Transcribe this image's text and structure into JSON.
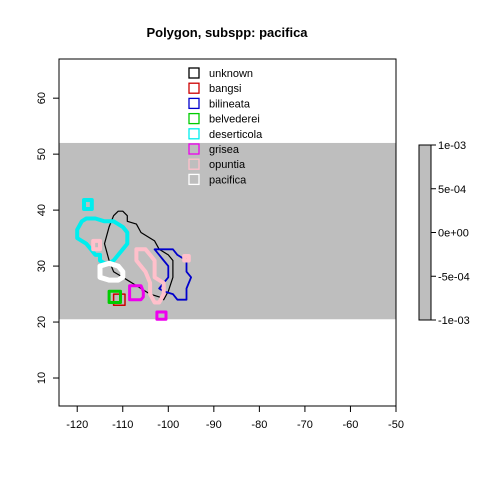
{
  "chart_data": {
    "type": "map",
    "title": "Polygon, subspp: pacifica",
    "xlim": [
      -124,
      -50
    ],
    "ylim": [
      5,
      67
    ],
    "x_ticks": [
      -120,
      -110,
      -100,
      -90,
      -80,
      -70,
      -60,
      -50
    ],
    "y_ticks": [
      10,
      20,
      30,
      40,
      50,
      60
    ],
    "x_tick_labels": [
      "-120",
      "-110",
      "-100",
      "-90",
      "-80",
      "-70",
      "-60",
      "-50"
    ],
    "y_tick_labels": [
      "10",
      "20",
      "30",
      "40",
      "50",
      "60"
    ],
    "band": {
      "y_range": [
        20.5,
        52
      ],
      "color": "#bebebe",
      "value": 0
    },
    "legend": {
      "position": "top-center",
      "entries": [
        {
          "name": "unknown",
          "color": "#000000"
        },
        {
          "name": "bangsi",
          "color": "#cc0000"
        },
        {
          "name": "bilineata",
          "color": "#0000cc"
        },
        {
          "name": "belvederei",
          "color": "#00cc00"
        },
        {
          "name": "deserticola",
          "color": "#00eeee"
        },
        {
          "name": "grisea",
          "color": "#ee00ee"
        },
        {
          "name": "opuntia",
          "color": "#ffc0cb"
        },
        {
          "name": "pacifica",
          "color": "#ffffff"
        }
      ]
    },
    "colorbar": {
      "ticks": [
        0.001,
        0.0005,
        0,
        -0.0005,
        -0.001
      ],
      "labels": [
        "1e-03",
        "5e-04",
        "0e+00",
        "-5e-04",
        "-1e-03"
      ],
      "color": "#bebebe"
    },
    "series": [
      {
        "name": "unknown",
        "color": "#000000",
        "width": 1.2,
        "x": [
          -112,
          -111,
          -110,
          -109,
          -109,
          -107,
          -106,
          -104,
          -103,
          -102,
          -100,
          -99,
          -99,
          -100,
          -101,
          -102,
          -104,
          -106,
          -108,
          -110,
          -112,
          -113,
          -114,
          -113,
          -112
        ],
        "y": [
          39,
          39.8,
          39.8,
          39,
          38,
          37.5,
          36,
          35,
          34.5,
          33,
          32,
          31,
          28,
          25.5,
          24,
          24.5,
          25,
          26,
          27,
          28,
          29,
          31,
          34,
          37,
          39
        ]
      },
      {
        "name": "bangsi",
        "color": "#cc0000",
        "width": 1.5,
        "x": [
          -112,
          -109.5,
          -109.5,
          -112,
          -112
        ],
        "y": [
          25,
          25,
          23,
          23,
          25
        ]
      },
      {
        "name": "bilineata",
        "color": "#0000cc",
        "width": 1.8,
        "x": [
          -103,
          -101,
          -99,
          -98,
          -96,
          -96,
          -95,
          -96,
          -96,
          -98,
          -99,
          -101,
          -102,
          -101,
          -100,
          -100,
          -101,
          -102,
          -103
        ],
        "y": [
          33,
          33,
          33,
          32,
          31,
          29,
          28,
          26,
          24,
          24,
          25,
          25.5,
          26,
          27,
          28,
          30,
          31,
          32,
          33
        ]
      },
      {
        "name": "belvederei",
        "color": "#00cc00",
        "width": 3,
        "x": [
          -113,
          -110.5,
          -110.5,
          -113,
          -113
        ],
        "y": [
          25.5,
          25.5,
          23.5,
          23.5,
          25.5
        ]
      },
      {
        "name": "deserticola",
        "color": "#00eeee",
        "width": 4,
        "x": [
          -119,
          -118,
          -116,
          -114,
          -112,
          -110,
          -109,
          -109,
          -110,
          -111,
          -112,
          -113,
          -114,
          -115,
          -115,
          -116,
          -117,
          -118,
          -119,
          -120,
          -120,
          -119
        ],
        "y": [
          38,
          38.5,
          38.5,
          38,
          38,
          37,
          36,
          34,
          33,
          32,
          31,
          30.5,
          30.5,
          31,
          32,
          32,
          33,
          34,
          34.5,
          35,
          36.5,
          38
        ]
      },
      {
        "name": "deserticola_b",
        "color": "#00eeee",
        "width": 4,
        "x": [
          -118.5,
          -116.8,
          -116.8,
          -118.5,
          -118.5
        ],
        "y": [
          41.8,
          41.8,
          40.2,
          40.2,
          41.8
        ]
      },
      {
        "name": "grisea",
        "color": "#ee00ee",
        "width": 3,
        "x": [
          -108.5,
          -106,
          -105.5,
          -105.5,
          -106,
          -108.5,
          -108.5
        ],
        "y": [
          26.5,
          26.5,
          25.5,
          24.5,
          24,
          24,
          26.5
        ]
      },
      {
        "name": "grisea_b",
        "color": "#ee00ee",
        "width": 3,
        "x": [
          -102.5,
          -100.5,
          -100.5,
          -102.5,
          -102.5
        ],
        "y": [
          21.8,
          21.8,
          20.5,
          20.5,
          21.8
        ]
      },
      {
        "name": "opuntia",
        "color": "#ffc0cb",
        "width": 4,
        "x": [
          -107,
          -105,
          -104,
          -103,
          -103,
          -101,
          -101,
          -102,
          -103,
          -104,
          -104,
          -105,
          -107,
          -107
        ],
        "y": [
          33,
          33,
          32,
          31,
          28,
          27,
          25,
          23.5,
          23.5,
          25,
          27,
          29,
          31,
          33
        ]
      },
      {
        "name": "opuntia_b",
        "color": "#ffc0cb",
        "width": 4,
        "x": [
          -116.5,
          -115,
          -115,
          -116.5,
          -116.5
        ],
        "y": [
          34.5,
          34.5,
          33,
          33,
          34.5
        ]
      },
      {
        "name": "opuntia_c",
        "color": "#ffc0cb",
        "width": 4,
        "x": [
          -96.5,
          -95.5,
          -95.5,
          -96.5,
          -96.5
        ],
        "y": [
          31.8,
          31.8,
          31,
          31,
          31.8
        ]
      },
      {
        "name": "pacifica",
        "color": "#ffffff",
        "width": 5,
        "x": [
          -115,
          -113,
          -111,
          -110,
          -110,
          -111,
          -113,
          -115,
          -115
        ],
        "y": [
          30,
          30.5,
          30,
          29,
          28,
          27.5,
          27.5,
          28,
          30
        ]
      }
    ]
  }
}
